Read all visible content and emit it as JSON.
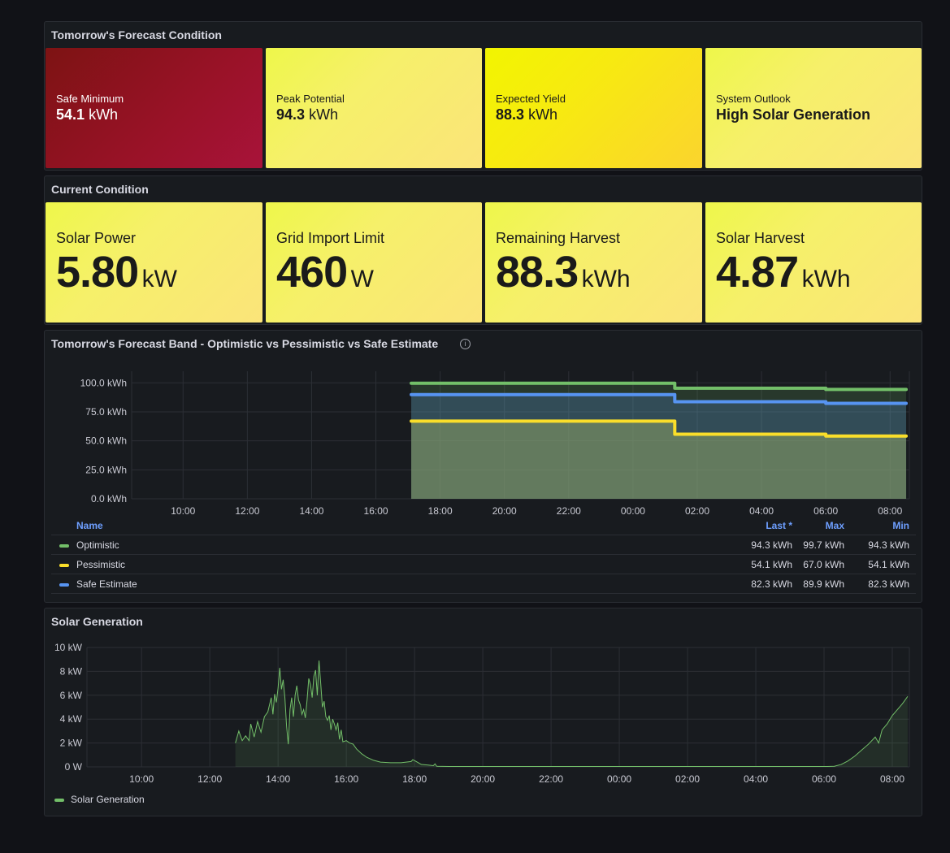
{
  "forecast_condition": {
    "title": "Tomorrow's Forecast Condition",
    "stats": [
      {
        "label": "Safe Minimum",
        "value": "54.1",
        "unit": "kWh"
      },
      {
        "label": "Peak Potential",
        "value": "94.3",
        "unit": "kWh"
      },
      {
        "label": "Expected Yield",
        "value": "88.3",
        "unit": "kWh"
      },
      {
        "label": "System Outlook",
        "value": "High Solar Generation"
      }
    ]
  },
  "current_condition": {
    "title": "Current Condition",
    "stats": [
      {
        "label": "Solar Power",
        "value": "5.80",
        "unit": "kW"
      },
      {
        "label": "Grid Import Limit",
        "value": "460",
        "unit": "W"
      },
      {
        "label": "Remaining Harvest",
        "value": "88.3",
        "unit": "kWh"
      },
      {
        "label": "Solar Harvest",
        "value": "4.87",
        "unit": "kWh"
      }
    ]
  },
  "forecast_band": {
    "title": "Tomorrow's Forecast Band - Optimistic vs Pessimistic vs Safe Estimate",
    "legend": {
      "headers": {
        "name": "Name",
        "last": "Last *",
        "max": "Max",
        "min": "Min"
      },
      "rows": [
        {
          "name": "Optimistic",
          "color": "#73bf69",
          "last": "94.3 kWh",
          "max": "99.7 kWh",
          "min": "94.3 kWh"
        },
        {
          "name": "Pessimistic",
          "color": "#fade2a",
          "last": "54.1 kWh",
          "max": "67.0 kWh",
          "min": "54.1 kWh"
        },
        {
          "name": "Safe Estimate",
          "color": "#5794f2",
          "last": "82.3 kWh",
          "max": "89.9 kWh",
          "min": "82.3 kWh"
        }
      ]
    }
  },
  "solar_generation": {
    "title": "Solar Generation",
    "legend": [
      {
        "name": "Solar Generation",
        "color": "#73bf69"
      }
    ]
  },
  "chart_data": [
    {
      "type": "line",
      "title": "Tomorrow's Forecast Band - Optimistic vs Pessimistic vs Safe Estimate",
      "x_ticks": [
        "10:00",
        "12:00",
        "14:00",
        "16:00",
        "18:00",
        "20:00",
        "22:00",
        "00:00",
        "02:00",
        "04:00",
        "06:00",
        "08:00"
      ],
      "y_ticks": [
        "0.0 kWh",
        "25.0 kWh",
        "50.0 kWh",
        "75.0 kWh",
        "100.0 kWh"
      ],
      "ylim": [
        0,
        110
      ],
      "xlim_hours": [
        8.4,
        32.6
      ],
      "series": [
        {
          "name": "Optimistic",
          "color": "#73bf69",
          "points": [
            [
              17.1,
              99.7
            ],
            [
              25.3,
              99.7
            ],
            [
              25.3,
              95.4
            ],
            [
              30.0,
              95.4
            ],
            [
              30.0,
              94.3
            ],
            [
              32.5,
              94.3
            ]
          ]
        },
        {
          "name": "Safe Estimate",
          "color": "#5794f2",
          "points": [
            [
              17.1,
              89.9
            ],
            [
              25.3,
              89.9
            ],
            [
              25.3,
              83.7
            ],
            [
              30.0,
              83.7
            ],
            [
              30.0,
              82.3
            ],
            [
              32.5,
              82.3
            ]
          ]
        },
        {
          "name": "Pessimistic",
          "color": "#fade2a",
          "points": [
            [
              17.1,
              67.0
            ],
            [
              25.3,
              67.0
            ],
            [
              25.3,
              55.7
            ],
            [
              30.0,
              55.7
            ],
            [
              30.0,
              54.1
            ],
            [
              32.5,
              54.1
            ]
          ]
        }
      ]
    },
    {
      "type": "line",
      "title": "Solar Generation",
      "x_ticks": [
        "10:00",
        "12:00",
        "14:00",
        "16:00",
        "18:00",
        "20:00",
        "22:00",
        "00:00",
        "02:00",
        "04:00",
        "06:00",
        "08:00"
      ],
      "y_ticks": [
        "0 W",
        "2 kW",
        "4 kW",
        "6 kW",
        "8 kW",
        "10 kW"
      ],
      "ylim": [
        0,
        10
      ],
      "xlim_hours": [
        8.4,
        32.5
      ],
      "series": [
        {
          "name": "Solar Generation",
          "color": "#73bf69",
          "points": [
            [
              12.75,
              2.0
            ],
            [
              12.85,
              3.0
            ],
            [
              12.95,
              2.2
            ],
            [
              13.05,
              2.6
            ],
            [
              13.15,
              2.2
            ],
            [
              13.2,
              3.6
            ],
            [
              13.3,
              2.5
            ],
            [
              13.4,
              3.8
            ],
            [
              13.5,
              2.9
            ],
            [
              13.6,
              4.2
            ],
            [
              13.7,
              4.6
            ],
            [
              13.8,
              5.8
            ],
            [
              13.85,
              4.4
            ],
            [
              13.9,
              6.1
            ],
            [
              13.95,
              5.4
            ],
            [
              14.0,
              6.6
            ],
            [
              14.05,
              8.3
            ],
            [
              14.1,
              6.5
            ],
            [
              14.15,
              7.3
            ],
            [
              14.2,
              5.8
            ],
            [
              14.25,
              3.4
            ],
            [
              14.3,
              1.9
            ],
            [
              14.35,
              4.8
            ],
            [
              14.4,
              5.8
            ],
            [
              14.45,
              4.2
            ],
            [
              14.5,
              6.0
            ],
            [
              14.55,
              6.8
            ],
            [
              14.6,
              5.6
            ],
            [
              14.65,
              5.2
            ],
            [
              14.7,
              4.4
            ],
            [
              14.75,
              4.8
            ],
            [
              14.8,
              4.1
            ],
            [
              14.85,
              5.6
            ],
            [
              14.9,
              7.4
            ],
            [
              14.95,
              6.9
            ],
            [
              15.0,
              5.8
            ],
            [
              15.05,
              7.6
            ],
            [
              15.1,
              8.1
            ],
            [
              15.15,
              6.0
            ],
            [
              15.2,
              8.9
            ],
            [
              15.25,
              7.0
            ],
            [
              15.3,
              5.0
            ],
            [
              15.35,
              5.5
            ],
            [
              15.4,
              4.2
            ],
            [
              15.45,
              3.9
            ],
            [
              15.5,
              4.3
            ],
            [
              15.55,
              3.1
            ],
            [
              15.6,
              4.0
            ],
            [
              15.65,
              3.6
            ],
            [
              15.7,
              3.1
            ],
            [
              15.75,
              3.7
            ],
            [
              15.8,
              2.3
            ],
            [
              15.85,
              3.1
            ],
            [
              15.9,
              2.1
            ],
            [
              16.0,
              2.2
            ],
            [
              16.1,
              2.0
            ],
            [
              16.2,
              1.9
            ],
            [
              16.3,
              1.5
            ],
            [
              16.45,
              1.1
            ],
            [
              16.6,
              0.8
            ],
            [
              16.8,
              0.55
            ],
            [
              17.0,
              0.4
            ],
            [
              17.3,
              0.35
            ],
            [
              17.6,
              0.35
            ],
            [
              17.9,
              0.45
            ],
            [
              17.95,
              0.6
            ],
            [
              18.05,
              0.45
            ],
            [
              18.2,
              0.2
            ],
            [
              18.4,
              0.15
            ],
            [
              18.55,
              0.1
            ],
            [
              18.6,
              0.25
            ],
            [
              18.65,
              0.05
            ],
            [
              19.0,
              0.03
            ],
            [
              21.0,
              0.03
            ],
            [
              23.0,
              0.03
            ],
            [
              25.0,
              0.03
            ],
            [
              27.0,
              0.03
            ],
            [
              29.0,
              0.03
            ],
            [
              30.1,
              0.03
            ],
            [
              30.3,
              0.05
            ],
            [
              30.5,
              0.2
            ],
            [
              30.7,
              0.5
            ],
            [
              30.9,
              0.9
            ],
            [
              31.1,
              1.4
            ],
            [
              31.3,
              1.9
            ],
            [
              31.5,
              2.5
            ],
            [
              31.6,
              2.0
            ],
            [
              31.7,
              3.1
            ],
            [
              31.85,
              3.6
            ],
            [
              32.0,
              4.3
            ],
            [
              32.15,
              4.8
            ],
            [
              32.3,
              5.3
            ],
            [
              32.45,
              5.9
            ]
          ]
        }
      ]
    }
  ]
}
